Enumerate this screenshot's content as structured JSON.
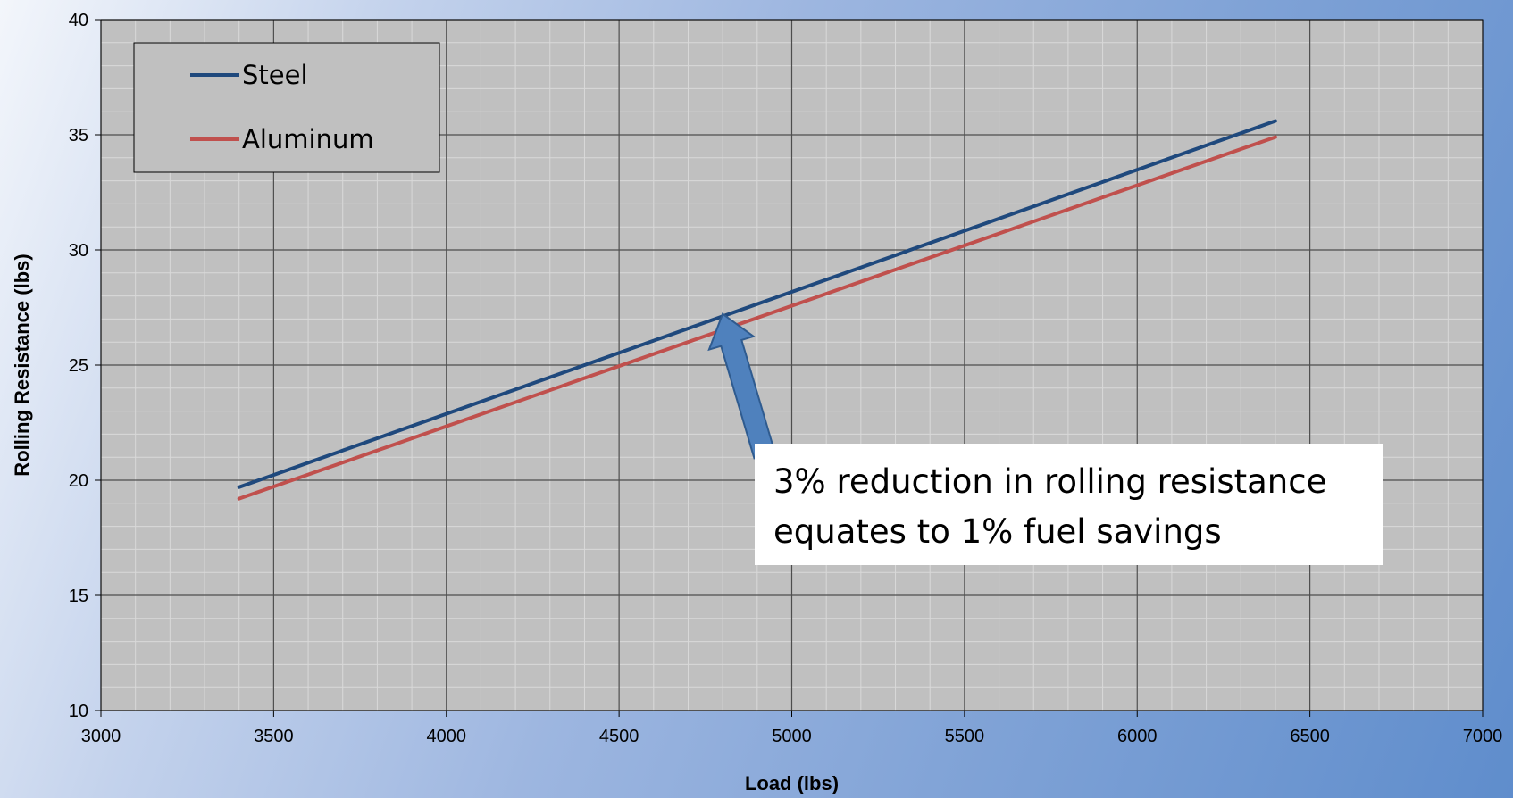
{
  "chart_data": {
    "type": "line",
    "title": "",
    "xlabel": "Load (lbs)",
    "ylabel": "Rolling Resistance (lbs)",
    "xlim": [
      3000,
      7000
    ],
    "ylim": [
      10,
      40
    ],
    "x_ticks": [
      "3000",
      "3500",
      "4000",
      "4500",
      "5000",
      "5500",
      "6000",
      "6500",
      "7000"
    ],
    "y_ticks": [
      "10",
      "15",
      "20",
      "25",
      "30",
      "35",
      "40"
    ],
    "grid": true,
    "minor_grid": true,
    "legend_position": "top-left",
    "series": [
      {
        "name": "Steel",
        "color": "#1f497d",
        "x": [
          3400,
          6400
        ],
        "y": [
          19.7,
          35.6
        ]
      },
      {
        "name": "Aluminum",
        "color": "#c0504d",
        "x": [
          3400,
          6400
        ],
        "y": [
          19.2,
          34.9
        ]
      }
    ],
    "annotation": {
      "lines": [
        "3% reduction in rolling resistance",
        "equates to 1% fuel savings"
      ],
      "arrow_color": "#4f81bd",
      "points_to": {
        "x": 4800,
        "y": 27.3
      }
    }
  },
  "colors": {
    "plot_background": "#c0c0c0",
    "major_grid": "#4d4d4d",
    "minor_grid": "#d9d9d9"
  }
}
